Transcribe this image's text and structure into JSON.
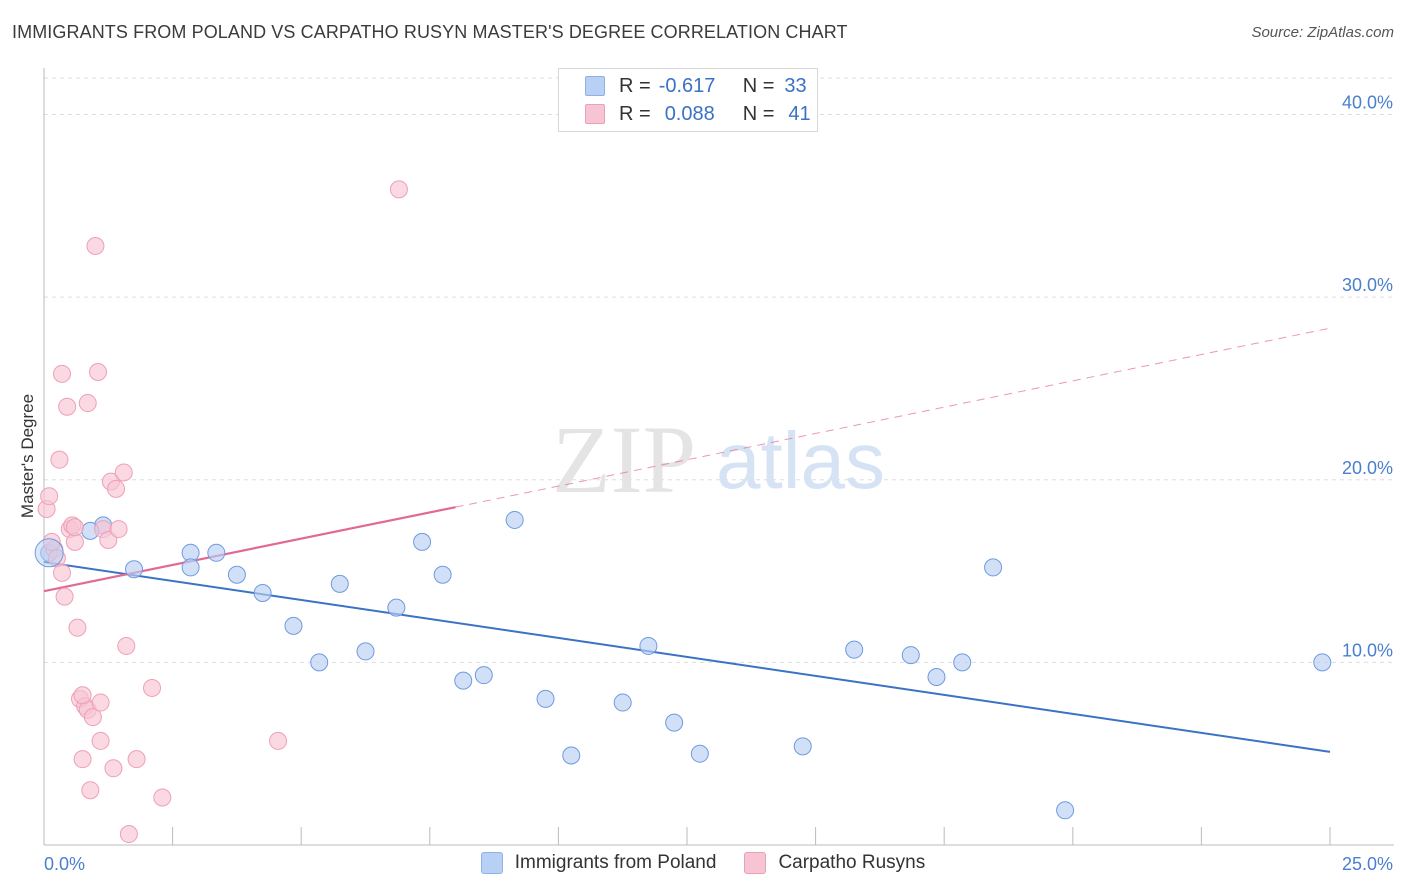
{
  "colors": {
    "blue": "#3a72c4",
    "blue_fill": "#b8d0f3",
    "pink": "#e26994",
    "pink_fill": "#f7c4d4",
    "grid": "#dddddd",
    "tick_label": "#4a7fd0"
  },
  "header": {
    "title": "IMMIGRANTS FROM POLAND VS CARPATHO RUSYN MASTER'S DEGREE CORRELATION CHART",
    "source": "Source: ZipAtlas.com"
  },
  "legend_top": {
    "rows": [
      {
        "r_label": "R =",
        "r_value": "-0.617",
        "n_label": "N =",
        "n_value": "33"
      },
      {
        "r_label": "R =",
        "r_value": "0.088",
        "n_label": "N =",
        "n_value": "41"
      }
    ]
  },
  "chart_data": {
    "type": "scatter",
    "title": "IMMIGRANTS FROM POLAND VS CARPATHO RUSYN MASTER'S DEGREE CORRELATION CHART",
    "xlabel": "",
    "ylabel": "Master's Degree",
    "xlim": [
      0,
      25
    ],
    "ylim": [
      0,
      42
    ],
    "x_tick_labels": [
      "0.0%",
      "25.0%"
    ],
    "y_ticks": [
      10,
      20,
      30,
      40
    ],
    "y_tick_labels": [
      "10.0%",
      "20.0%",
      "30.0%",
      "40.0%"
    ],
    "watermark": [
      "ZIP",
      "atlas"
    ],
    "series": [
      {
        "name": "Immigrants from Poland",
        "color": "#3a72c4",
        "points": [
          [
            0.1,
            16.0
          ],
          [
            1.15,
            17.5
          ],
          [
            1.75,
            15.1
          ],
          [
            2.85,
            16.0
          ],
          [
            2.85,
            15.2
          ],
          [
            3.35,
            16.0
          ],
          [
            3.75,
            14.8
          ],
          [
            4.25,
            13.8
          ],
          [
            4.85,
            12.0
          ],
          [
            5.35,
            10.0
          ],
          [
            5.75,
            14.3
          ],
          [
            6.25,
            10.6
          ],
          [
            6.85,
            13.0
          ],
          [
            7.35,
            16.6
          ],
          [
            7.75,
            14.8
          ],
          [
            8.15,
            9.0
          ],
          [
            8.55,
            9.3
          ],
          [
            9.15,
            17.8
          ],
          [
            9.75,
            8.0
          ],
          [
            10.25,
            4.9
          ],
          [
            11.25,
            7.8
          ],
          [
            11.75,
            10.9
          ],
          [
            12.25,
            6.7
          ],
          [
            12.75,
            5.0
          ],
          [
            14.75,
            5.4
          ],
          [
            15.75,
            10.7
          ],
          [
            16.85,
            10.4
          ],
          [
            17.35,
            9.2
          ],
          [
            17.85,
            10.0
          ],
          [
            18.45,
            15.2
          ],
          [
            19.85,
            1.9
          ],
          [
            24.85,
            10.0
          ],
          [
            0.9,
            17.2
          ]
        ],
        "trend": {
          "x": [
            0,
            25
          ],
          "y": [
            15.5,
            5.1
          ],
          "dashed": false
        }
      },
      {
        "name": "Carpatho Rusyns",
        "color": "#e26994",
        "points": [
          [
            0.05,
            18.4
          ],
          [
            0.1,
            19.1
          ],
          [
            0.2,
            16.2
          ],
          [
            0.25,
            15.7
          ],
          [
            0.3,
            21.1
          ],
          [
            0.35,
            14.9
          ],
          [
            0.4,
            13.6
          ],
          [
            0.35,
            25.8
          ],
          [
            0.45,
            24.0
          ],
          [
            0.5,
            17.3
          ],
          [
            0.55,
            17.5
          ],
          [
            0.6,
            16.6
          ],
          [
            0.65,
            11.9
          ],
          [
            0.7,
            8.0
          ],
          [
            0.75,
            4.7
          ],
          [
            0.8,
            7.6
          ],
          [
            0.85,
            7.4
          ],
          [
            0.85,
            24.2
          ],
          [
            0.9,
            3.0
          ],
          [
            0.95,
            7.0
          ],
          [
            1.0,
            32.8
          ],
          [
            1.05,
            25.9
          ],
          [
            1.1,
            5.7
          ],
          [
            1.1,
            7.8
          ],
          [
            1.15,
            17.3
          ],
          [
            1.25,
            16.7
          ],
          [
            1.3,
            19.9
          ],
          [
            1.35,
            4.2
          ],
          [
            1.4,
            19.5
          ],
          [
            1.45,
            17.3
          ],
          [
            1.55,
            20.4
          ],
          [
            1.6,
            10.9
          ],
          [
            1.65,
            0.6
          ],
          [
            1.8,
            4.7
          ],
          [
            2.1,
            8.6
          ],
          [
            2.3,
            2.6
          ],
          [
            4.55,
            5.7
          ],
          [
            6.9,
            35.9
          ],
          [
            0.75,
            8.2
          ],
          [
            0.15,
            16.6
          ],
          [
            0.6,
            17.4
          ]
        ],
        "trend_solid": {
          "x": [
            0,
            8
          ],
          "y": [
            13.9,
            18.5
          ]
        },
        "trend_dashed": {
          "x": [
            8,
            25
          ],
          "y": [
            18.5,
            28.3
          ]
        }
      }
    ],
    "legend": [
      "Immigrants from Poland",
      "Carpatho Rusyns"
    ]
  }
}
